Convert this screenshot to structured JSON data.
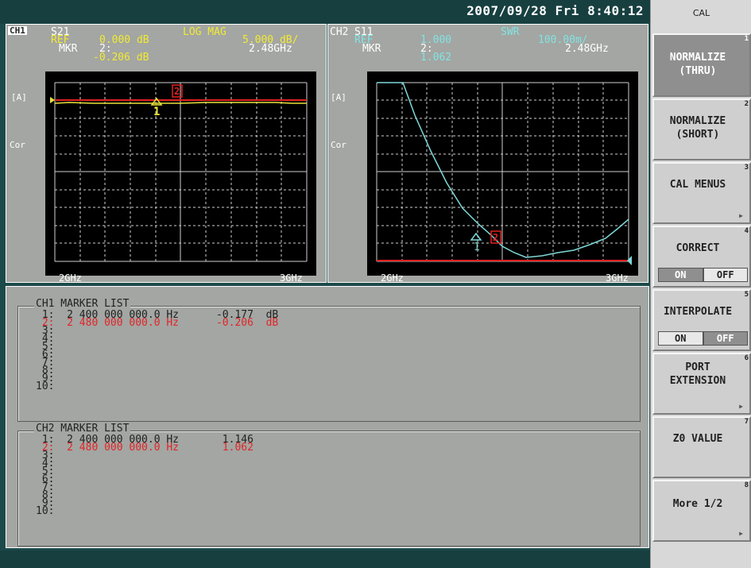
{
  "header": {
    "datetime": "2007/09/28 Fri   8:40:12"
  },
  "ch1": {
    "badge": "CH1",
    "param": "S21",
    "ref_label": "REF",
    "ref_value": "0.000 dB",
    "format": "LOG MAG",
    "scale": "5.000 dB/",
    "mkr_label": "MKR",
    "mkr_num": "2:",
    "mkr_freq": "2.48GHz",
    "mkr_value": "-0.206 dB",
    "side_a": "[A]",
    "side_cor": "Cor",
    "start": "2GHz",
    "stop": "3GHz",
    "marker1": "1",
    "marker2": "2"
  },
  "ch2": {
    "badge": "CH2",
    "param": "S11",
    "ref_label": "REF",
    "ref_value": "1.000",
    "format": "SWR",
    "scale": "100.00m/",
    "mkr_label": "MKR",
    "mkr_num": "2:",
    "mkr_freq": "2.48GHz",
    "mkr_value": "1.062",
    "side_a": "[A]",
    "side_cor": "Cor",
    "start": "2GHz",
    "stop": "3GHz",
    "marker1": "1",
    "marker2": "2"
  },
  "ch1_list": {
    "title": "CH1 MARKER LIST",
    "rows": [
      " 1:  2 400 000 000.0 Hz      -0.177  dB",
      " 2:  2 480 000 000.0 Hz      -0.206  dB",
      " 3:",
      " 4:",
      " 5:",
      " 6:",
      " 7:",
      " 8:",
      " 9:",
      "10:"
    ]
  },
  "ch2_list": {
    "title": "CH2 MARKER LIST",
    "rows": [
      " 1:  2 400 000 000.0 Hz       1.146",
      " 2:  2 480 000 000.0 Hz       1.062",
      " 3:",
      " 4:",
      " 5:",
      " 6:",
      " 7:",
      " 8:",
      " 9:",
      "10:"
    ]
  },
  "softkeys": {
    "title": "CAL",
    "k1": {
      "label": "NORMALIZE\n(THRU)",
      "num": "1"
    },
    "k2": {
      "label": "NORMALIZE\n(SHORT)",
      "num": "2"
    },
    "k3": {
      "label": "CAL MENUS",
      "num": "3"
    },
    "k4": {
      "label": "CORRECT",
      "num": "4",
      "on": "ON",
      "off": "OFF"
    },
    "k5": {
      "label": "INTERPOLATE",
      "num": "5",
      "on": "ON",
      "off": "OFF"
    },
    "k6": {
      "label": "PORT\nEXTENSION",
      "num": "6"
    },
    "k7": {
      "label": "Z0 VALUE",
      "num": "7"
    },
    "k8": {
      "label": "More 1/2",
      "num": "8"
    }
  },
  "colors": {
    "ch1_trace": "#e8e23a",
    "ch2_trace": "#7fd8d8",
    "ref_line": "#e02020",
    "grid": "#cfcfcf"
  }
}
